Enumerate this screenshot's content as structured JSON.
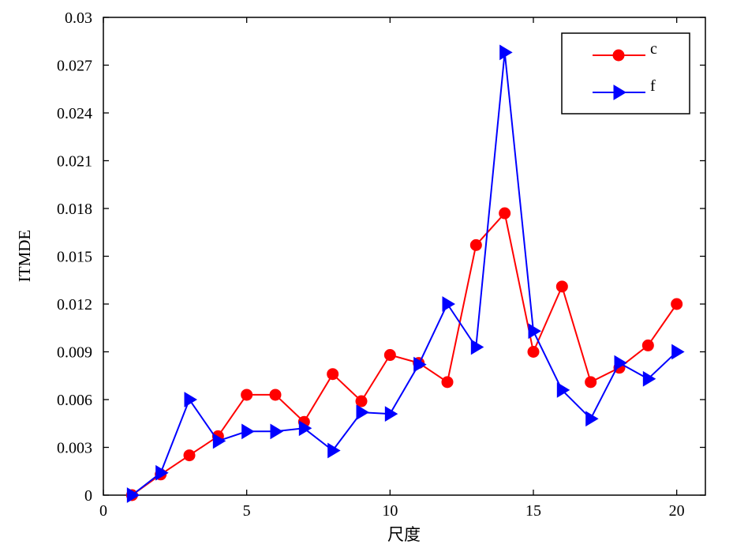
{
  "chart_data": {
    "type": "line",
    "title": "",
    "xlabel": "尺度",
    "ylabel": "ITMDE",
    "xlim": [
      0,
      21
    ],
    "ylim": [
      0,
      0.03
    ],
    "x_ticks": [
      0,
      5,
      10,
      15,
      20
    ],
    "x_tick_labels": [
      "0",
      "5",
      "10",
      "15",
      "20"
    ],
    "y_ticks": [
      0,
      0.003,
      0.006,
      0.009,
      0.012,
      0.015,
      0.018,
      0.021,
      0.024,
      0.027,
      0.03
    ],
    "y_tick_labels": [
      "0",
      "0.003",
      "0.006",
      "0.009",
      "0.012",
      "0.015",
      "0.018",
      "0.021",
      "0.024",
      "0.027",
      "0.03"
    ],
    "grid": false,
    "legend_position": "top-right",
    "x": [
      1,
      2,
      3,
      4,
      5,
      6,
      7,
      8,
      9,
      10,
      11,
      12,
      13,
      14,
      15,
      16,
      17,
      18,
      19,
      20
    ],
    "series": [
      {
        "name": "c",
        "color": "#ff0000",
        "marker": "circle",
        "values": [
          0.0,
          0.0013,
          0.0025,
          0.0037,
          0.0063,
          0.0063,
          0.0046,
          0.0076,
          0.0059,
          0.0088,
          0.0083,
          0.0071,
          0.0157,
          0.0177,
          0.009,
          0.0131,
          0.0071,
          0.008,
          0.0094,
          0.012
        ]
      },
      {
        "name": "f",
        "color": "#0000ff",
        "marker": "triangle-right",
        "values": [
          0.0,
          0.0014,
          0.006,
          0.0034,
          0.004,
          0.004,
          0.0042,
          0.0028,
          0.0052,
          0.0051,
          0.0082,
          0.012,
          0.0093,
          0.0278,
          0.0103,
          0.0066,
          0.0048,
          0.0083,
          0.0073,
          0.009
        ]
      }
    ]
  }
}
